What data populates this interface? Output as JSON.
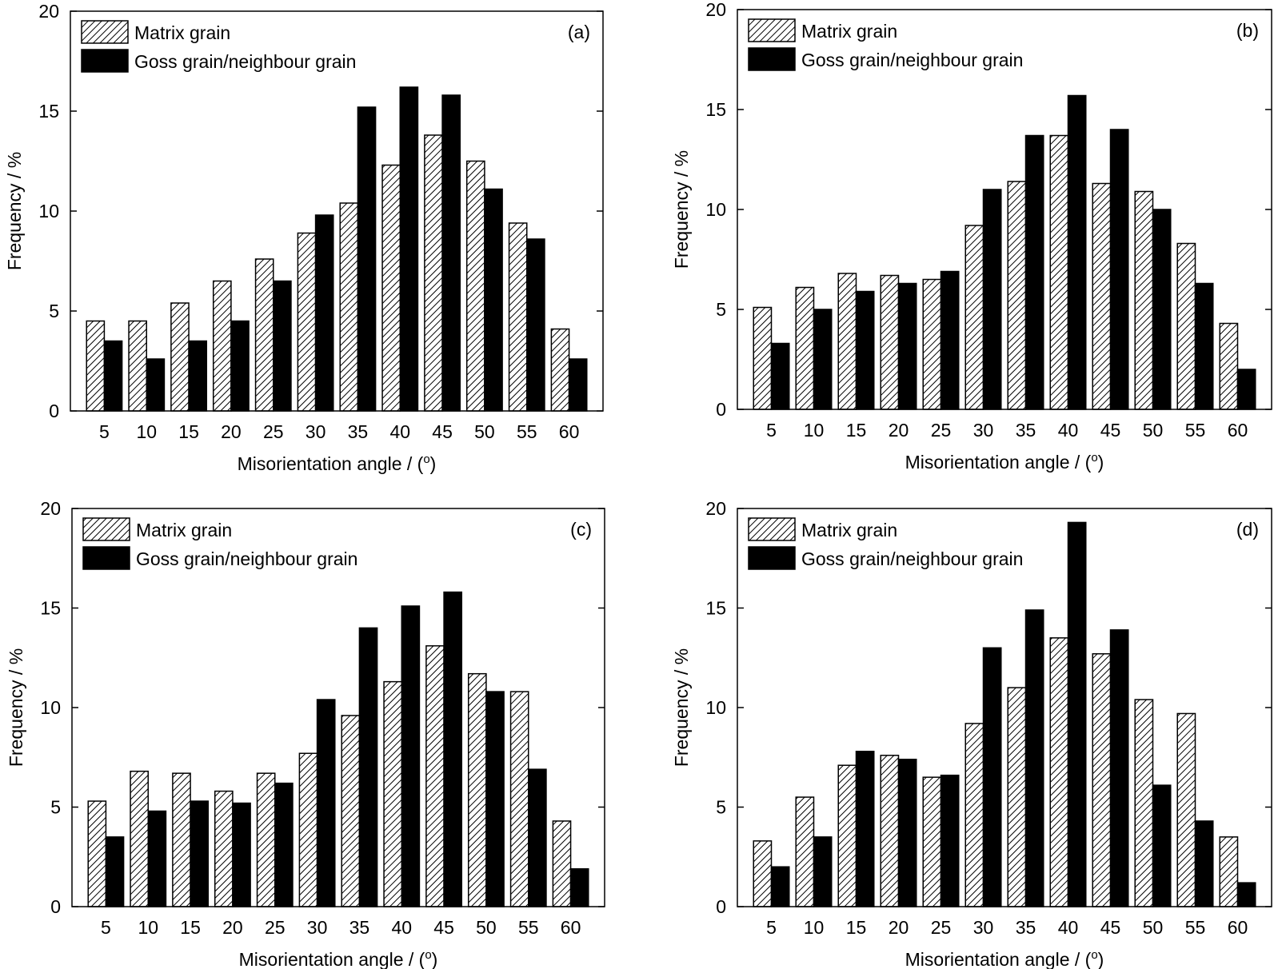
{
  "chart_data": [
    {
      "type": "bar",
      "panel_label": "(a)",
      "xlabel": "Misorientation angle / (",
      "xlabel_unit_sup": "o",
      "xlabel_close": ")",
      "ylabel": "Frequency / %",
      "ylim": [
        0,
        20
      ],
      "yticks": [
        "0",
        "5",
        "10",
        "15",
        "20"
      ],
      "categories": [
        "5",
        "10",
        "15",
        "20",
        "25",
        "30",
        "35",
        "40",
        "45",
        "50",
        "55",
        "60"
      ],
      "legend_position": "top-left",
      "series": [
        {
          "name": "Matrix grain",
          "pattern": "hatched",
          "values": [
            4.5,
            4.5,
            5.4,
            6.5,
            7.6,
            8.9,
            10.4,
            12.3,
            13.8,
            12.5,
            9.4,
            4.1
          ]
        },
        {
          "name": "Goss grain/neighbour grain",
          "pattern": "solid",
          "values": [
            3.5,
            2.6,
            3.5,
            4.5,
            6.5,
            9.8,
            15.2,
            16.2,
            15.8,
            11.1,
            8.6,
            2.6
          ]
        }
      ]
    },
    {
      "type": "bar",
      "panel_label": "(b)",
      "xlabel": "Misorientation angle / (",
      "xlabel_unit_sup": "o",
      "xlabel_close": ")",
      "ylabel": "Frequency / %",
      "ylim": [
        0,
        20
      ],
      "yticks": [
        "0",
        "5",
        "10",
        "15",
        "20"
      ],
      "categories": [
        "5",
        "10",
        "15",
        "20",
        "25",
        "30",
        "35",
        "40",
        "45",
        "50",
        "55",
        "60"
      ],
      "legend_position": "top-left",
      "series": [
        {
          "name": "Matrix grain",
          "pattern": "hatched",
          "values": [
            5.1,
            6.1,
            6.8,
            6.7,
            6.5,
            9.2,
            11.4,
            13.7,
            11.3,
            10.9,
            8.3,
            4.3
          ]
        },
        {
          "name": "Goss grain/neighbour grain",
          "pattern": "solid",
          "values": [
            3.3,
            5.0,
            5.9,
            6.3,
            6.9,
            11.0,
            13.7,
            15.7,
            14.0,
            10.0,
            6.3,
            2.0
          ]
        }
      ]
    },
    {
      "type": "bar",
      "panel_label": "(c)",
      "xlabel": "Misorientation angle / (",
      "xlabel_unit_sup": "o",
      "xlabel_close": ")",
      "ylabel": "Frequency / %",
      "ylim": [
        0,
        20
      ],
      "yticks": [
        "0",
        "5",
        "10",
        "15",
        "20"
      ],
      "categories": [
        "5",
        "10",
        "15",
        "20",
        "25",
        "30",
        "35",
        "40",
        "45",
        "50",
        "55",
        "60"
      ],
      "legend_position": "top-left",
      "series": [
        {
          "name": "Matrix grain",
          "pattern": "hatched",
          "values": [
            5.3,
            6.8,
            6.7,
            5.8,
            6.7,
            7.7,
            9.6,
            11.3,
            13.1,
            11.7,
            10.8,
            4.3
          ]
        },
        {
          "name": "Goss grain/neighbour grain",
          "pattern": "solid",
          "values": [
            3.5,
            4.8,
            5.3,
            5.2,
            6.2,
            10.4,
            14.0,
            15.1,
            15.8,
            10.8,
            6.9,
            1.9
          ]
        }
      ]
    },
    {
      "type": "bar",
      "panel_label": "(d)",
      "xlabel": "Misorientation angle / (",
      "xlabel_unit_sup": "o",
      "xlabel_close": ")",
      "ylabel": "Frequency / %",
      "ylim": [
        0,
        20
      ],
      "yticks": [
        "0",
        "5",
        "10",
        "15",
        "20"
      ],
      "categories": [
        "5",
        "10",
        "15",
        "20",
        "25",
        "30",
        "35",
        "40",
        "45",
        "50",
        "55",
        "60"
      ],
      "legend_position": "top-left",
      "series": [
        {
          "name": "Matrix grain",
          "pattern": "hatched",
          "values": [
            3.3,
            5.5,
            7.1,
            7.6,
            6.5,
            9.2,
            11.0,
            13.5,
            12.7,
            10.4,
            9.7,
            3.5
          ]
        },
        {
          "name": "Goss grain/neighbour grain",
          "pattern": "solid",
          "values": [
            2.0,
            3.5,
            7.8,
            7.4,
            6.6,
            13.0,
            14.9,
            19.3,
            13.9,
            6.1,
            4.3,
            1.2
          ]
        }
      ]
    }
  ]
}
